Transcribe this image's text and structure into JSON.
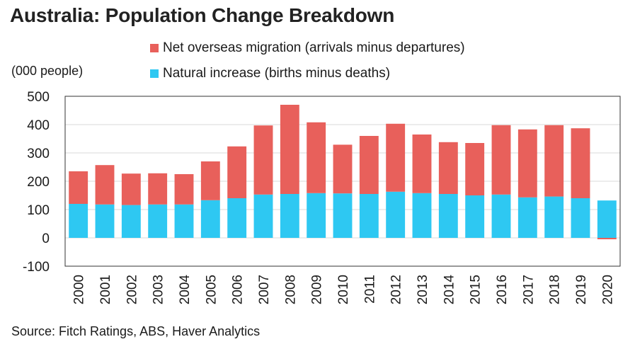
{
  "title": "Australia: Population Change Breakdown",
  "units_label": "(000 people)",
  "source": "Source: Fitch Ratings, ABS, Haver Analytics",
  "colors": {
    "migration": "#e8605b",
    "natural": "#2ec8f2",
    "axis": "#333333",
    "grid": "#d9d9d9"
  },
  "chart_data": {
    "type": "bar",
    "stacked": true,
    "categories": [
      "2000",
      "2001",
      "2002",
      "2003",
      "2004",
      "2005",
      "2006",
      "2007",
      "2008",
      "2009",
      "2010",
      "2011",
      "2012",
      "2013",
      "2014",
      "2015",
      "2016",
      "2017",
      "2018",
      "2019",
      "2020"
    ],
    "series": [
      {
        "name": "Natural increase (births minus deaths)",
        "color": "#2ec8f2",
        "values": [
          120,
          118,
          116,
          118,
          118,
          133,
          140,
          153,
          155,
          158,
          157,
          155,
          163,
          158,
          155,
          150,
          153,
          143,
          146,
          140,
          132
        ]
      },
      {
        "name": "Net overseas migration (arrivals minus departures)",
        "color": "#e8605b",
        "values": [
          115,
          139,
          111,
          110,
          107,
          137,
          183,
          244,
          315,
          250,
          172,
          205,
          240,
          207,
          183,
          185,
          245,
          240,
          252,
          247,
          -5
        ]
      }
    ],
    "ylim": [
      -100,
      500
    ],
    "yticks": [
      -100,
      0,
      100,
      200,
      300,
      400,
      500
    ],
    "ylabel": "(000 people)",
    "grid": true,
    "legend_position": "top"
  }
}
